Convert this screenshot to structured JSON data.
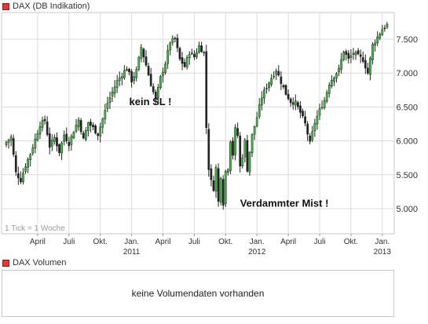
{
  "chart_data": {
    "type": "candlestick",
    "title": "DAX (DB Indikation)",
    "ylim": [
      4800,
      7800
    ],
    "yticks": [
      "5.000",
      "5.500",
      "6.000",
      "6.500",
      "7.000",
      "7.500"
    ],
    "ytick_values": [
      5000,
      5500,
      6000,
      6500,
      7000,
      7500
    ],
    "xaxis_labels": [
      {
        "label": "April",
        "x": 13
      },
      {
        "label": "Juli",
        "x": 26
      },
      {
        "label": "Okt.",
        "x": 39
      },
      {
        "label": "Jan.",
        "x": 52
      },
      {
        "label": "April",
        "x": 65
      },
      {
        "label": "Juli",
        "x": 78
      },
      {
        "label": "Okt.",
        "x": 91
      },
      {
        "label": "Jan.",
        "x": 104
      },
      {
        "label": "April",
        "x": 117
      },
      {
        "label": "Juli",
        "x": 130
      },
      {
        "label": "Okt.",
        "x": 143
      },
      {
        "label": "Jan.",
        "x": 156
      }
    ],
    "year_labels": [
      {
        "label": "2011",
        "x": 52
      },
      {
        "label": "2012",
        "x": 104
      },
      {
        "label": "2013",
        "x": 156
      }
    ],
    "xlim": [
      0,
      159
    ],
    "note": "1 Tick = 1 Woche",
    "annotations": [
      {
        "text": "kein SL !",
        "x": 51,
        "y": 6530
      },
      {
        "text": "Verdammter Mist !",
        "x": 97,
        "y": 5030
      }
    ],
    "keypoints": [
      [
        0,
        5980
      ],
      [
        2,
        6050
      ],
      [
        4,
        5530
      ],
      [
        6,
        5420
      ],
      [
        8,
        5640
      ],
      [
        10,
        5810
      ],
      [
        12,
        6020
      ],
      [
        14,
        6240
      ],
      [
        16,
        6300
      ],
      [
        18,
        5920
      ],
      [
        20,
        6050
      ],
      [
        22,
        5840
      ],
      [
        24,
        6090
      ],
      [
        26,
        5960
      ],
      [
        28,
        6150
      ],
      [
        30,
        6310
      ],
      [
        32,
        6020
      ],
      [
        34,
        6270
      ],
      [
        36,
        6190
      ],
      [
        38,
        6100
      ],
      [
        40,
        6320
      ],
      [
        42,
        6560
      ],
      [
        44,
        6720
      ],
      [
        46,
        6880
      ],
      [
        48,
        6980
      ],
      [
        50,
        7080
      ],
      [
        52,
        6890
      ],
      [
        54,
        7030
      ],
      [
        56,
        7380
      ],
      [
        58,
        7120
      ],
      [
        60,
        6840
      ],
      [
        62,
        6600
      ],
      [
        64,
        6930
      ],
      [
        66,
        7150
      ],
      [
        68,
        7460
      ],
      [
        70,
        7500
      ],
      [
        72,
        7200
      ],
      [
        74,
        7100
      ],
      [
        76,
        7310
      ],
      [
        78,
        7240
      ],
      [
        80,
        7400
      ],
      [
        82,
        7300
      ],
      [
        83,
        6200
      ],
      [
        84,
        5600
      ],
      [
        85,
        5400
      ],
      [
        86,
        5300
      ],
      [
        87,
        5600
      ],
      [
        88,
        5100
      ],
      [
        89,
        5480
      ],
      [
        90,
        5080
      ],
      [
        91,
        5550
      ],
      [
        92,
        5600
      ],
      [
        93,
        6010
      ],
      [
        94,
        5800
      ],
      [
        95,
        6170
      ],
      [
        96,
        6080
      ],
      [
        97,
        5620
      ],
      [
        98,
        5780
      ],
      [
        99,
        5990
      ],
      [
        100,
        5580
      ],
      [
        101,
        5840
      ],
      [
        102,
        6080
      ],
      [
        104,
        6350
      ],
      [
        106,
        6650
      ],
      [
        108,
        6800
      ],
      [
        110,
        6930
      ],
      [
        112,
        7050
      ],
      [
        114,
        6870
      ],
      [
        116,
        6700
      ],
      [
        118,
        6580
      ],
      [
        120,
        6560
      ],
      [
        122,
        6420
      ],
      [
        124,
        6250
      ],
      [
        126,
        5960
      ],
      [
        128,
        6270
      ],
      [
        130,
        6450
      ],
      [
        132,
        6600
      ],
      [
        134,
        6850
      ],
      [
        136,
        6960
      ],
      [
        138,
        7050
      ],
      [
        140,
        7330
      ],
      [
        142,
        7200
      ],
      [
        144,
        7300
      ],
      [
        146,
        7250
      ],
      [
        148,
        7200
      ],
      [
        150,
        7000
      ],
      [
        152,
        7410
      ],
      [
        154,
        7530
      ],
      [
        156,
        7650
      ],
      [
        158,
        7710
      ]
    ]
  },
  "price_panel": {
    "legend": "DAX (DB Indikation)",
    "legend_color": "#e03a3a"
  },
  "volume_panel": {
    "legend": "DAX Volumen",
    "legend_color": "#e03a3a",
    "message": "keine Volumendaten vorhanden"
  },
  "colors": {
    "up": "#3fbf3f",
    "down": "#222222",
    "wick": "#222222",
    "grid": "#dcdcdc"
  }
}
